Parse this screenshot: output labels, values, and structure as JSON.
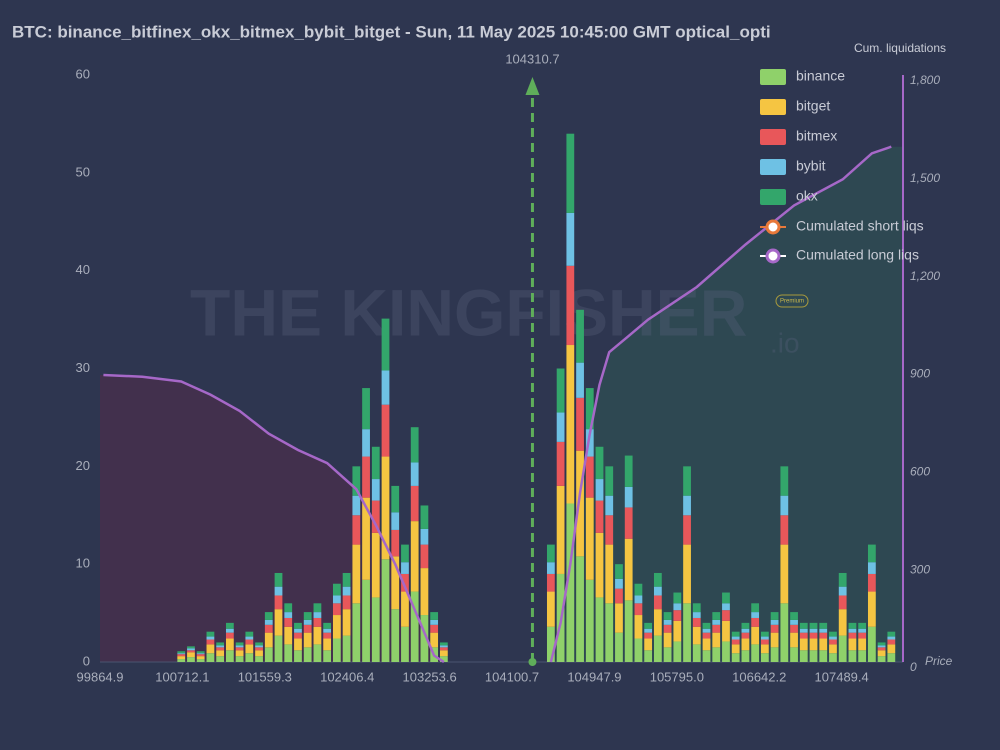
{
  "chart_data": {
    "type": "stacked_bar_line",
    "title": "BTC: binance_bitfinex_okx_bitmex_bybit_bitget - Sun, 11 May 2025 10:45:00 GMT optical_opti",
    "y2_label": "Cum. liquidations",
    "x_label": "Price",
    "watermark": "THE KINGFISHER",
    "watermark_suffix": ".io",
    "badge": "Premium",
    "current_price": 104310.7,
    "current_price_color": "#5fae5a",
    "xlim": [
      99864.9,
      108120
    ],
    "xticks": [
      99864.9,
      100712.1,
      101559.3,
      102406.4,
      103253.6,
      104100.7,
      104947.9,
      {
        "value": 105795.0,
        "label": "105795.0"
      },
      106642.2,
      107489.4
    ],
    "ylim": [
      0,
      60
    ],
    "yticks": [
      0,
      10,
      20,
      30,
      40,
      50,
      60
    ],
    "y2lim": [
      0,
      1800
    ],
    "y2ticks": [
      0,
      300,
      600,
      900,
      {
        "value": 1200,
        "label": "1,200"
      },
      {
        "value": 1500,
        "label": "1,500"
      },
      {
        "value": 1800,
        "label": "1,800"
      }
    ],
    "x": [
      100700,
      100800,
      100900,
      101000,
      101100,
      101200,
      101300,
      101400,
      101500,
      101600,
      101700,
      101800,
      101900,
      102000,
      102100,
      102200,
      102300,
      102400,
      102500,
      102600,
      102700,
      102800,
      102900,
      103000,
      103100,
      103200,
      103300,
      103400,
      104500,
      104600,
      104700,
      104800,
      104900,
      105000,
      105100,
      105200,
      105300,
      105400,
      105500,
      105600,
      105700,
      105800,
      105900,
      106000,
      106100,
      106200,
      106300,
      106400,
      106500,
      106600,
      106700,
      106800,
      106900,
      107000,
      107100,
      107200,
      107300,
      107400,
      107500,
      107600,
      107700,
      107800,
      107900,
      108000
    ],
    "series": [
      {
        "name": "binance",
        "color": "#8fd16a",
        "values": [
          0.3,
          0.5,
          0.3,
          0.9,
          0.6,
          1.2,
          0.6,
          0.9,
          0.6,
          1.5,
          2.7,
          1.8,
          1.2,
          1.5,
          1.8,
          1.2,
          2.4,
          2.7,
          6,
          8.4,
          6.6,
          10.5,
          5.4,
          3.6,
          7.2,
          4.8,
          1.5,
          0.6,
          3.6,
          9,
          16.2,
          10.8,
          8.4,
          6.6,
          6,
          3,
          6.3,
          2.4,
          1.2,
          2.7,
          1.5,
          2.1,
          6,
          1.8,
          1.2,
          1.5,
          2.1,
          0.9,
          1.2,
          1.8,
          0.9,
          1.5,
          6,
          1.5,
          1.2,
          1.2,
          1.2,
          0.9,
          2.7,
          1.2,
          1.2,
          3.6,
          0.6,
          0.9
        ]
      },
      {
        "name": "bitget",
        "color": "#f5c542",
        "values": [
          0.3,
          0.5,
          0.3,
          0.9,
          0.6,
          1.2,
          0.6,
          0.9,
          0.6,
          1.5,
          2.7,
          1.8,
          1.2,
          1.5,
          1.8,
          1.2,
          2.4,
          2.7,
          6,
          8.4,
          6.6,
          10.5,
          5.4,
          3.6,
          7.2,
          4.8,
          1.5,
          0.6,
          3.6,
          9,
          16.2,
          10.8,
          8.4,
          6.6,
          6,
          3,
          6.3,
          2.4,
          1.2,
          2.7,
          1.5,
          2.1,
          6,
          1.8,
          1.2,
          1.5,
          2.1,
          0.9,
          1.2,
          1.8,
          0.9,
          1.5,
          6,
          1.5,
          1.2,
          1.2,
          1.2,
          0.9,
          2.7,
          1.2,
          1.2,
          3.6,
          0.6,
          0.9
        ]
      },
      {
        "name": "bitmex",
        "color": "#e8575a",
        "values": [
          0.2,
          0.2,
          0.2,
          0.5,
          0.3,
          0.6,
          0.3,
          0.5,
          0.3,
          0.8,
          1.4,
          0.9,
          0.6,
          0.8,
          0.9,
          0.6,
          1.2,
          1.4,
          3,
          4.2,
          3.3,
          5.3,
          2.7,
          1.8,
          3.6,
          2.4,
          0.8,
          0.3,
          1.8,
          4.5,
          8.1,
          5.4,
          4.2,
          3.3,
          3,
          1.5,
          3.2,
          1.2,
          0.6,
          1.4,
          0.8,
          1.1,
          3,
          0.9,
          0.6,
          0.8,
          1.1,
          0.5,
          0.6,
          0.9,
          0.5,
          0.8,
          3,
          0.8,
          0.6,
          0.6,
          0.6,
          0.5,
          1.4,
          0.6,
          0.6,
          1.8,
          0.3,
          0.5
        ]
      },
      {
        "name": "bybit",
        "color": "#6ec1e4",
        "values": [
          0.1,
          0.2,
          0.1,
          0.3,
          0.2,
          0.4,
          0.2,
          0.3,
          0.2,
          0.5,
          0.9,
          0.6,
          0.4,
          0.5,
          0.6,
          0.4,
          0.8,
          0.9,
          2,
          2.8,
          2.2,
          3.5,
          1.8,
          1.2,
          2.4,
          1.6,
          0.5,
          0.2,
          1.2,
          3,
          5.4,
          3.6,
          2.8,
          2.2,
          2,
          1,
          2.1,
          0.8,
          0.4,
          0.9,
          0.5,
          0.7,
          2,
          0.6,
          0.4,
          0.5,
          0.7,
          0.3,
          0.4,
          0.6,
          0.3,
          0.5,
          2,
          0.5,
          0.4,
          0.4,
          0.4,
          0.3,
          0.9,
          0.4,
          0.4,
          1.2,
          0.2,
          0.3
        ]
      },
      {
        "name": "okx",
        "color": "#33a66b",
        "values": [
          0.2,
          0.2,
          0.2,
          0.5,
          0.3,
          0.6,
          0.3,
          0.5,
          0.3,
          0.8,
          1.4,
          0.9,
          0.6,
          0.8,
          0.9,
          0.6,
          1.2,
          1.4,
          3,
          4.2,
          3.3,
          5.3,
          2.7,
          1.8,
          3.6,
          2.4,
          0.8,
          0.3,
          1.8,
          4.5,
          8.1,
          5.4,
          4.2,
          3.3,
          3,
          1.5,
          3.2,
          1.2,
          0.6,
          1.4,
          0.8,
          1.1,
          3,
          0.9,
          0.6,
          0.8,
          1.1,
          0.5,
          0.6,
          0.9,
          0.5,
          0.8,
          3,
          0.8,
          0.6,
          0.6,
          0.6,
          0.5,
          1.4,
          0.6,
          0.6,
          1.8,
          0.3,
          0.5
        ]
      }
    ],
    "lines": [
      {
        "name": "Cumulated short liqs",
        "color": "#a668c8",
        "legend_color": "#e8793a",
        "area_color": "#2f4a52",
        "axis": "y2",
        "x": [
          104500,
          104600,
          104700,
          104800,
          104900,
          105000,
          105100,
          105300,
          105500,
          106000,
          106500,
          107000,
          107500,
          107800,
          108000
        ],
        "values": [
          0,
          120,
          300,
          520,
          700,
          850,
          950,
          1000,
          1050,
          1150,
          1280,
          1400,
          1480,
          1560,
          1580
        ]
      },
      {
        "name": "Cumulated long liqs",
        "color": "#a668c8",
        "legend_color": "#ffffff",
        "area_color": "#45304c",
        "axis": "y2",
        "x": [
          99900,
          100300,
          100700,
          101000,
          101300,
          101600,
          101900,
          102200,
          102500,
          102700,
          102900,
          103100,
          103300,
          103400
        ],
        "values": [
          880,
          875,
          860,
          820,
          770,
          700,
          650,
          610,
          530,
          420,
          300,
          160,
          20,
          0
        ]
      }
    ]
  }
}
